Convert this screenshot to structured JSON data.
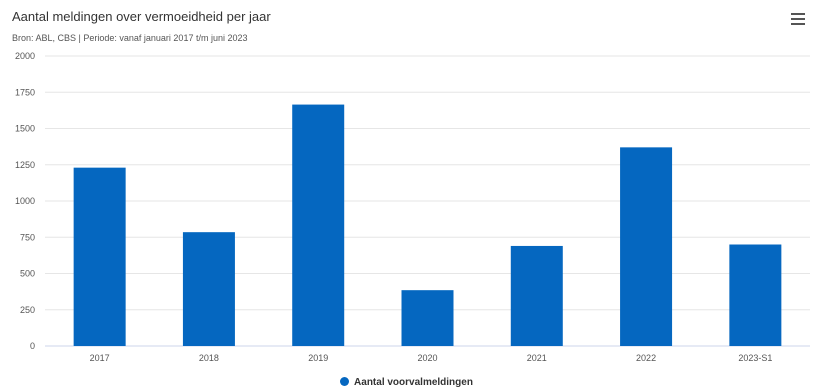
{
  "title": "Aantal meldingen over vermoeidheid per jaar",
  "subtitle": "Bron: ABL, CBS | Periode: vanaf januari 2017 t/m juni 2023",
  "menu_icon": "hamburger-menu-icon",
  "colors": {
    "bar": "#0567c0",
    "grid": "#e6e6e6",
    "axis": "#ccd6eb"
  },
  "chart_data": {
    "type": "bar",
    "title": "Aantal meldingen over vermoeidheid per jaar",
    "subtitle": "Bron: ABL, CBS | Periode: vanaf januari 2017 t/m juni 2023",
    "categories": [
      "2017",
      "2018",
      "2019",
      "2020",
      "2021",
      "2022",
      "2023-S1"
    ],
    "series": [
      {
        "name": "Aantal voorvalmeldingen",
        "values": [
          1230,
          785,
          1665,
          385,
          690,
          1370,
          700
        ]
      }
    ],
    "ylim": [
      0,
      2000
    ],
    "yticks": [
      0,
      250,
      500,
      750,
      1000,
      1250,
      1500,
      1750,
      2000
    ],
    "xlabel": "",
    "ylabel": "",
    "grid": true,
    "legend": "bottom-center"
  }
}
